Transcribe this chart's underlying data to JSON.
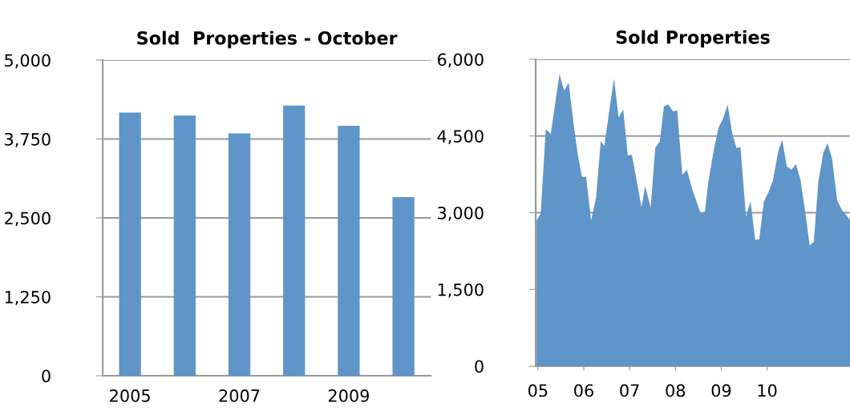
{
  "chart_data": [
    {
      "type": "bar",
      "title": "Sold  Properties - October",
      "categories": [
        "2005",
        null,
        "2007",
        null,
        "2009",
        null
      ],
      "values": [
        4170,
        4120,
        3840,
        4280,
        3960,
        2830
      ],
      "color": "#5f95c8",
      "ylim": [
        0,
        5000
      ],
      "yticks": [
        0,
        {
          "value": 1250,
          "label": "1,250"
        },
        {
          "value": 2500,
          "label": "2,500"
        },
        {
          "value": 3750,
          "label": "3,750"
        },
        {
          "value": 5000,
          "label": "5,000"
        }
      ],
      "grid": "y",
      "legend": false
    },
    {
      "type": "area",
      "title": "Sold Properties",
      "x": [
        2004.97,
        2005.06,
        2005.17,
        2005.28,
        2005.47,
        2005.57,
        2005.67,
        2005.79,
        2005.87,
        2005.96,
        2006.05,
        2006.16,
        2006.27,
        2006.37,
        2006.45,
        2006.56,
        2006.66,
        2006.76,
        2006.86,
        2006.96,
        2007.05,
        2007.26,
        2007.34,
        2007.46,
        2007.56,
        2007.66,
        2007.75,
        2007.84,
        2007.95,
        2008.04,
        2008.15,
        2008.25,
        2008.37,
        2008.55,
        2008.64,
        2008.72,
        2008.84,
        2008.94,
        2009.04,
        2009.14,
        2009.24,
        2009.33,
        2009.42,
        2009.54,
        2009.64,
        2009.74,
        2009.83,
        2009.93,
        2010.03,
        2010.13,
        2010.24,
        2010.33,
        2010.43,
        2010.53,
        2010.63,
        2010.73,
        2010.83,
        2010.93,
        2011.02,
        2011.12,
        2011.23,
        2011.32,
        2011.42,
        2011.53,
        2011.63,
        2011.81
      ],
      "values": [
        2850,
        2980,
        4630,
        4540,
        5710,
        5390,
        5540,
        4650,
        4130,
        3700,
        3700,
        2850,
        3300,
        4400,
        4310,
        5020,
        5620,
        4860,
        5020,
        4120,
        4130,
        3110,
        3520,
        3100,
        4270,
        4390,
        5080,
        5120,
        4980,
        5000,
        3740,
        3840,
        3450,
        2990,
        3000,
        3610,
        4240,
        4660,
        4840,
        5110,
        4550,
        4270,
        4280,
        2930,
        3220,
        2470,
        2480,
        3220,
        3400,
        3640,
        4180,
        4430,
        3910,
        3840,
        3950,
        3640,
        3030,
        2360,
        2430,
        3610,
        4180,
        4360,
        4050,
        3240,
        3060,
        2860
      ],
      "color": "#5f95c8",
      "xlim": [
        2004.95,
        2011.81
      ],
      "xticks": [
        {
          "value": 2005,
          "label": "05"
        },
        {
          "value": 2006,
          "label": "06"
        },
        {
          "value": 2007,
          "label": "07"
        },
        {
          "value": 2008,
          "label": "08"
        },
        {
          "value": 2009,
          "label": "09"
        },
        {
          "value": 2010,
          "label": "10"
        }
      ],
      "ylim": [
        0,
        6000
      ],
      "yticks": [
        0,
        {
          "value": 1500,
          "label": "1,500"
        },
        {
          "value": 3000,
          "label": "3,000"
        },
        {
          "value": 4500,
          "label": "4,500"
        },
        {
          "value": 6000,
          "label": "6,000"
        }
      ],
      "grid": "y",
      "legend": false
    }
  ]
}
